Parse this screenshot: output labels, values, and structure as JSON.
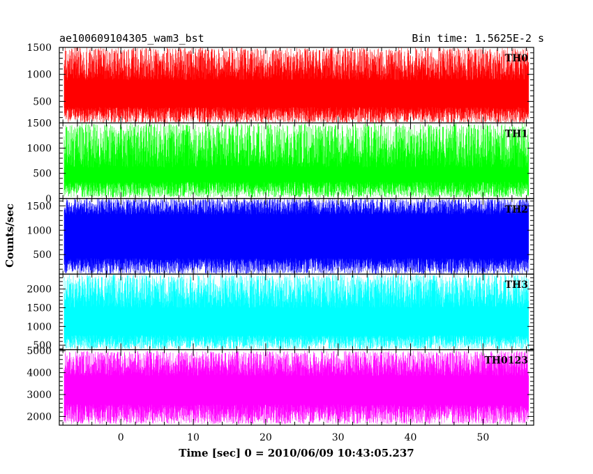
{
  "chart_data": {
    "type": "line",
    "title_left": "ae100609104305_wam3_bst",
    "title_right": "Bin time: 1.5625E-2 s",
    "xlabel": "Time [sec] 0 = 2010/06/09 10:43:05.237",
    "ylabel": "Counts/sec",
    "xlim": [
      -8.5,
      57
    ],
    "data_x_range": [
      -7.8,
      56.2
    ],
    "x_ticks": [
      0,
      10,
      20,
      30,
      40,
      50
    ],
    "x_tick_labels": [
      "0",
      "10",
      "20",
      "30",
      "40",
      "50"
    ],
    "x_minor_step": 2,
    "grid": false,
    "panels": [
      {
        "name": "TH0",
        "color": "#ff0000",
        "ylim": [
          100,
          1500
        ],
        "y_ticks": [
          500,
          1000,
          1500
        ],
        "y_tick_labels": [
          "500",
          "1000",
          "1500"
        ],
        "y_minor_step": 100,
        "band": [
          280,
          1130
        ],
        "range": [
          100,
          1500
        ],
        "mean": 690
      },
      {
        "name": "TH1",
        "color": "#00ff00",
        "ylim": [
          0,
          1500
        ],
        "y_ticks": [
          0,
          500,
          1000,
          1500
        ],
        "y_tick_labels": [
          "0",
          "500",
          "1000",
          "1500"
        ],
        "y_minor_step": 100,
        "band": [
          210,
          960
        ],
        "range": [
          20,
          1500
        ],
        "mean": 560
      },
      {
        "name": "TH2",
        "color": "#0000ff",
        "ylim": [
          100,
          1650
        ],
        "y_ticks": [
          500,
          1000,
          1500
        ],
        "y_tick_labels": [
          "500",
          "1000",
          "1500"
        ],
        "y_minor_step": 100,
        "band": [
          300,
          1450
        ],
        "range": [
          100,
          1650
        ],
        "mean": 870
      },
      {
        "name": "TH3",
        "color": "#00ffff",
        "ylim": [
          380,
          2400
        ],
        "y_ticks": [
          500,
          1000,
          1500,
          2000
        ],
        "y_tick_labels": [
          "500",
          "1000",
          "1500",
          "2000"
        ],
        "y_minor_step": 100,
        "band": [
          620,
          1850
        ],
        "range": [
          390,
          2400
        ],
        "mean": 1220
      },
      {
        "name": "TH0123",
        "color": "#ff00ff",
        "ylim": [
          1600,
          5050
        ],
        "y_ticks": [
          2000,
          3000,
          4000,
          5000
        ],
        "y_tick_labels": [
          "2000",
          "3000",
          "4000",
          "5000"
        ],
        "y_minor_step": 200,
        "band": [
          2200,
          4300
        ],
        "range": [
          1650,
          5000
        ],
        "mean": 3250
      }
    ]
  }
}
